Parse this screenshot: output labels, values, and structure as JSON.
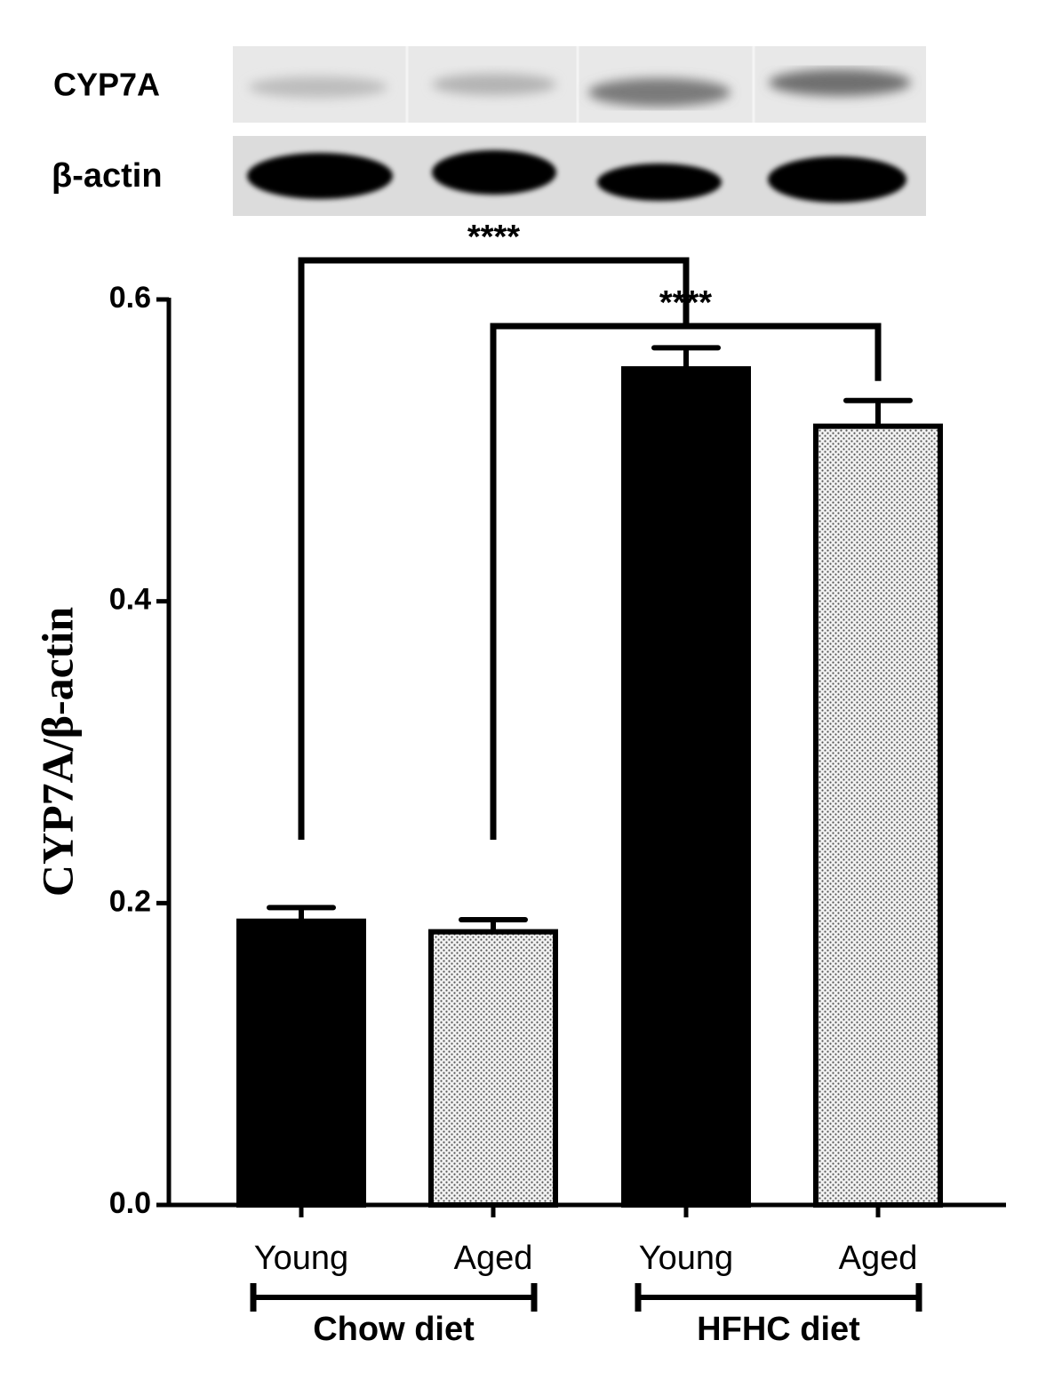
{
  "chart_data": {
    "type": "bar",
    "blot_labels": [
      "CYP7A",
      "β-actin"
    ],
    "ylabel": "CYP7A/β-actin",
    "categories": [
      "Young",
      "Aged",
      "Young",
      "Aged"
    ],
    "values": [
      0.188,
      0.181,
      0.554,
      0.516
    ],
    "errors": [
      0.009,
      0.008,
      0.014,
      0.017
    ],
    "fills": [
      "solid",
      "dotted",
      "solid",
      "dotted"
    ],
    "color": "#000000",
    "groups": [
      {
        "label": "Chow diet",
        "categories": [
          0,
          1
        ]
      },
      {
        "label": "HFHC diet",
        "categories": [
          2,
          3
        ]
      }
    ],
    "significance": [
      {
        "text": "****",
        "from": 0,
        "to": 2
      },
      {
        "text": "****",
        "from": 1,
        "to": 3
      }
    ],
    "ylim": [
      0,
      0.6
    ],
    "yticks": [
      {
        "value": 0,
        "label": "0.0"
      },
      0.2,
      0.4,
      0.6
    ]
  }
}
